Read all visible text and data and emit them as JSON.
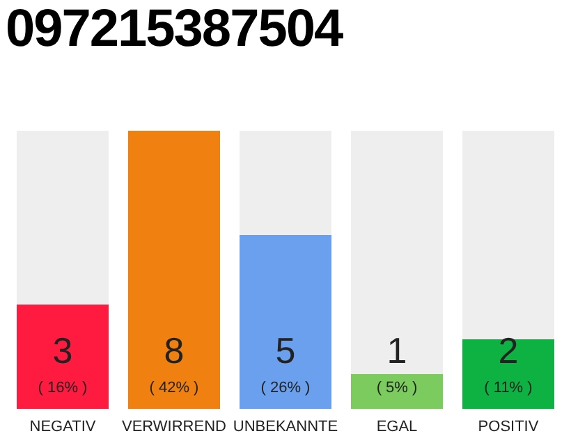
{
  "chart_data": {
    "type": "bar",
    "title": "097215387504",
    "categories": [
      "NEGATIV",
      "VERWIRREND",
      "UNBEKANNTE",
      "EGAL",
      "POSITIV"
    ],
    "values": [
      3,
      8,
      5,
      1,
      2
    ],
    "colors": [
      "#ff1a40",
      "#f0800f",
      "#6aa0ee",
      "#7ccb5f",
      "#0db243"
    ],
    "data_labels": true,
    "annotations": [
      "( 16% )",
      "( 42% )",
      "( 26% )",
      "( 5% )",
      "( 11% )"
    ]
  }
}
